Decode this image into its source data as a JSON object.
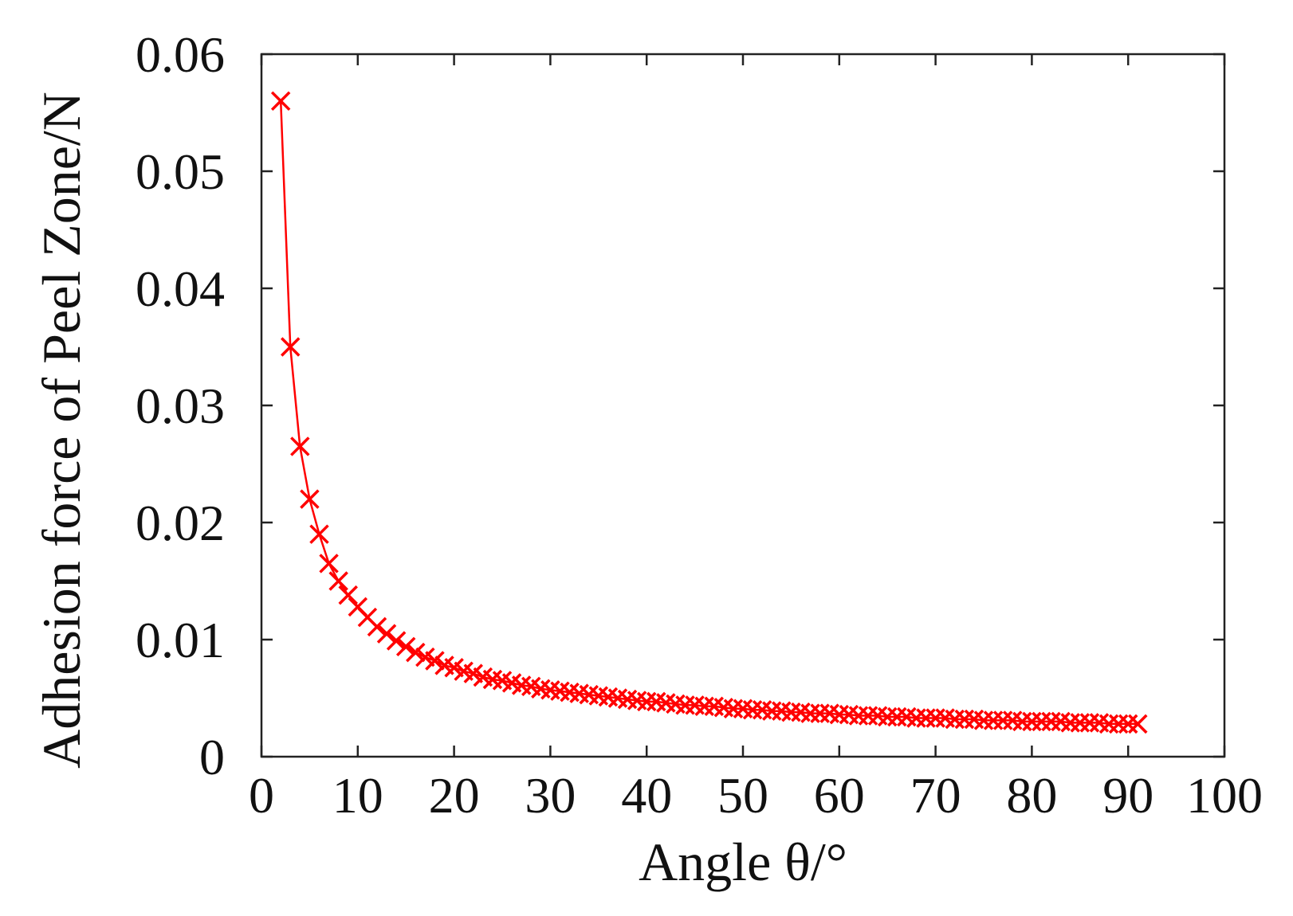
{
  "chart_data": {
    "type": "line",
    "xlabel": "Angle θ/°",
    "ylabel": "Adhesion force of  Peel Zone/N",
    "xlim": [
      0,
      100
    ],
    "ylim": [
      0,
      0.06
    ],
    "xticks": [
      0,
      10,
      20,
      30,
      40,
      50,
      60,
      70,
      80,
      90,
      100
    ],
    "yticks": [
      0,
      0.01,
      0.02,
      0.03,
      0.04,
      0.05,
      0.06
    ],
    "xtick_labels": [
      "0",
      "10",
      "20",
      "30",
      "40",
      "50",
      "60",
      "70",
      "80",
      "90",
      "100"
    ],
    "ytick_labels": [
      "0",
      "0.01",
      "0.02",
      "0.03",
      "0.04",
      "0.05",
      "0.06"
    ],
    "grid": false,
    "legend": "none",
    "series": [
      {
        "marker": "x",
        "color": "#ff0000",
        "x": [
          2,
          3,
          4,
          5,
          6,
          7,
          8,
          9,
          10,
          11,
          12,
          13,
          14,
          15,
          16,
          17,
          18,
          19,
          20,
          21,
          22,
          23,
          24,
          25,
          26,
          27,
          28,
          29,
          30,
          31,
          32,
          33,
          34,
          35,
          36,
          37,
          38,
          39,
          40,
          41,
          42,
          43,
          44,
          45,
          46,
          47,
          48,
          49,
          50,
          51,
          52,
          53,
          54,
          55,
          56,
          57,
          58,
          59,
          60,
          61,
          62,
          63,
          64,
          65,
          66,
          67,
          68,
          69,
          70,
          71,
          72,
          73,
          74,
          75,
          76,
          77,
          78,
          79,
          80,
          81,
          82,
          83,
          84,
          85,
          86,
          87,
          88,
          89,
          90,
          91
        ],
        "y": [
          0.056,
          0.035,
          0.0265,
          0.022,
          0.019,
          0.0165,
          0.015,
          0.0138,
          0.0128,
          0.0119,
          0.0111,
          0.0105,
          0.0099,
          0.0094,
          0.0089,
          0.0085,
          0.0082,
          0.0078,
          0.0076,
          0.0073,
          0.0071,
          0.0068,
          0.0066,
          0.0065,
          0.0063,
          0.0061,
          0.006,
          0.0058,
          0.0057,
          0.0056,
          0.0055,
          0.0054,
          0.0053,
          0.0052,
          0.0051,
          0.005,
          0.0049,
          0.0048,
          0.0047,
          0.0047,
          0.0046,
          0.0045,
          0.0044,
          0.0044,
          0.0043,
          0.0043,
          0.0042,
          0.0041,
          0.0041,
          0.004,
          0.004,
          0.0039,
          0.0039,
          0.0038,
          0.0038,
          0.0037,
          0.0037,
          0.0037,
          0.0036,
          0.0036,
          0.0035,
          0.0035,
          0.0035,
          0.0034,
          0.0034,
          0.0034,
          0.0033,
          0.0033,
          0.0033,
          0.0033,
          0.0032,
          0.0032,
          0.0032,
          0.0031,
          0.0031,
          0.0031,
          0.0031,
          0.003,
          0.003,
          0.003,
          0.003,
          0.003,
          0.0029,
          0.0029,
          0.0029,
          0.0029,
          0.0028,
          0.0028,
          0.0028,
          0.0028
        ]
      }
    ]
  }
}
